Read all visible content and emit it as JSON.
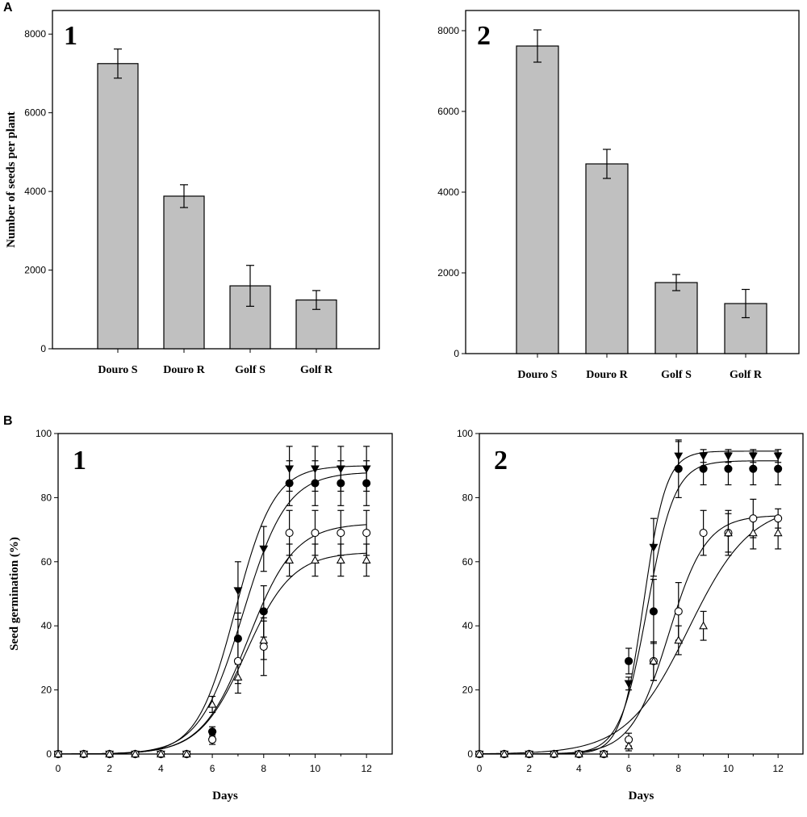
{
  "panels": {
    "A": "A",
    "B": "B"
  },
  "chart_data": [
    {
      "id": "A1",
      "type": "bar",
      "subplot_label": "1",
      "title": "",
      "xlabel": "",
      "ylabel": "Number of seeds per plant",
      "ylim": [
        0,
        8600
      ],
      "yticks": [
        0,
        2000,
        4000,
        6000,
        8000
      ],
      "categories": [
        "Douro S",
        "Douro R",
        "Golf S",
        "Golf R"
      ],
      "values": [
        7250,
        3880,
        1600,
        1240
      ],
      "errors": [
        370,
        290,
        520,
        240
      ],
      "bar_color": "#c0c0c0"
    },
    {
      "id": "A2",
      "type": "bar",
      "subplot_label": "2",
      "title": "",
      "xlabel": "",
      "ylabel": "",
      "ylim": [
        0,
        8500
      ],
      "yticks": [
        0,
        2000,
        4000,
        6000,
        8000
      ],
      "categories": [
        "Douro S",
        "Douro R",
        "Golf S",
        "Golf R"
      ],
      "values": [
        7620,
        4700,
        1760,
        1240
      ],
      "errors": [
        400,
        360,
        200,
        350
      ],
      "bar_color": "#c0c0c0"
    },
    {
      "id": "B1",
      "type": "line",
      "subplot_label": "1",
      "xlabel": "Days",
      "ylabel": "Seed germination (%)",
      "xlim": [
        0,
        13
      ],
      "ylim": [
        0,
        100
      ],
      "xticks": [
        0,
        2,
        4,
        6,
        8,
        10,
        12
      ],
      "yticks": [
        0,
        20,
        40,
        60,
        80,
        100
      ],
      "x": [
        0,
        1,
        2,
        3,
        4,
        5,
        6,
        7,
        8,
        9,
        10,
        11,
        12
      ],
      "series": [
        {
          "name": "filled triangle",
          "marker": "triangle-down-filled",
          "values": [
            0,
            0,
            0,
            0,
            0,
            0,
            6,
            51,
            64,
            89,
            89,
            89,
            89
          ],
          "errors": [
            0,
            0,
            0,
            0,
            0,
            0,
            1.5,
            9,
            7,
            7,
            7,
            7,
            7
          ],
          "fit": {
            "a": 90,
            "x0": 6.9,
            "b": 0.75
          }
        },
        {
          "name": "filled circle",
          "marker": "circle-filled",
          "values": [
            0,
            0,
            0,
            0,
            0,
            0,
            7,
            36,
            44.5,
            84.5,
            84.5,
            84.5,
            84.5
          ],
          "errors": [
            0,
            0,
            0,
            0,
            0,
            0,
            1.5,
            8,
            8,
            7,
            7,
            7,
            7
          ],
          "fit": {
            "a": 88,
            "x0": 7.2,
            "b": 0.85
          }
        },
        {
          "name": "open circle",
          "marker": "circle-open",
          "values": [
            0,
            0,
            0,
            0,
            0,
            0,
            4.5,
            29,
            33.5,
            69,
            69,
            69,
            69
          ],
          "errors": [
            0,
            0,
            0,
            0,
            0,
            0,
            1.5,
            7,
            9,
            7,
            7,
            7,
            7
          ],
          "fit": {
            "a": 72,
            "x0": 7.4,
            "b": 0.9
          }
        },
        {
          "name": "open triangle",
          "marker": "triangle-up-open",
          "values": [
            0,
            0,
            0,
            0,
            0,
            0,
            15.5,
            24,
            35.5,
            60.5,
            60.5,
            60.5,
            60.5
          ],
          "errors": [
            0,
            0,
            0,
            0,
            0,
            0,
            2.5,
            5,
            6,
            5,
            5,
            5,
            5
          ],
          "fit": {
            "a": 63,
            "x0": 7.3,
            "b": 0.9
          }
        }
      ]
    },
    {
      "id": "B2",
      "type": "line",
      "subplot_label": "2",
      "xlabel": "Days",
      "ylabel": "",
      "xlim": [
        0,
        13
      ],
      "ylim": [
        0,
        100
      ],
      "xticks": [
        0,
        2,
        4,
        6,
        8,
        10,
        12
      ],
      "yticks": [
        0,
        20,
        40,
        60,
        80,
        100
      ],
      "x": [
        0,
        1,
        2,
        3,
        4,
        5,
        6,
        7,
        8,
        9,
        10,
        11,
        12
      ],
      "series": [
        {
          "name": "filled triangle",
          "marker": "triangle-down-filled",
          "values": [
            0,
            0,
            0,
            0,
            0,
            0,
            22,
            64.5,
            93,
            93,
            93,
            93,
            93
          ],
          "errors": [
            0,
            0,
            0,
            0,
            0,
            0,
            2,
            9,
            4.5,
            2,
            2,
            2,
            2
          ],
          "fit": {
            "a": 94.5,
            "x0": 6.6,
            "b": 0.45
          }
        },
        {
          "name": "filled circle",
          "marker": "circle-filled",
          "values": [
            0,
            0,
            0,
            0,
            0,
            0,
            29,
            44.5,
            89,
            89,
            89,
            89,
            89
          ],
          "errors": [
            0,
            0,
            0,
            0,
            0,
            0,
            4,
            10,
            9,
            5,
            5,
            5,
            5
          ],
          "fit": {
            "a": 91.5,
            "x0": 6.75,
            "b": 0.55
          }
        },
        {
          "name": "open circle",
          "marker": "circle-open",
          "values": [
            0,
            0,
            0,
            0,
            0,
            0,
            4.5,
            29,
            44.5,
            69,
            69,
            73.5,
            73.5
          ],
          "errors": [
            0,
            0,
            0,
            0,
            0,
            0,
            2,
            6,
            9,
            7,
            7,
            6,
            3
          ],
          "fit": {
            "a": 74.5,
            "x0": 7.6,
            "b": 0.75
          }
        },
        {
          "name": "open triangle",
          "marker": "triangle-up-open",
          "values": [
            0,
            0,
            0,
            0,
            0,
            0,
            2.5,
            29,
            35.5,
            40,
            69,
            69,
            69
          ],
          "errors": [
            0,
            0,
            0,
            0,
            0,
            0,
            1.5,
            6,
            4.5,
            4.5,
            6,
            5,
            5
          ],
          "fit": {
            "a": 78,
            "x0": 8.4,
            "b": 1.25
          }
        }
      ]
    }
  ]
}
